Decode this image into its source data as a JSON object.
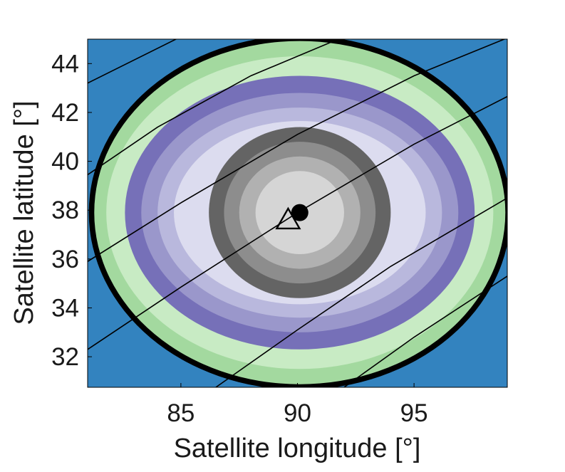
{
  "chart_data": {
    "type": "contour",
    "xlabel": "Satellite longitude [°]",
    "ylabel": "Satellite latitude [°]",
    "xlim": [
      81,
      99
    ],
    "ylim": [
      30.75,
      45
    ],
    "xticks": [
      85,
      90,
      95
    ],
    "yticks": [
      32,
      34,
      36,
      38,
      40,
      42,
      44
    ],
    "grid": false,
    "background_color": "#3383bf",
    "center": {
      "lon": 90.1,
      "lat": 37.9
    },
    "contour_levels": [
      {
        "rx": 9.0,
        "ry": 7.2,
        "color": "#a3d99f"
      },
      {
        "rx": 8.3,
        "ry": 6.4,
        "color": "#c8ebc4"
      },
      {
        "rx": 7.5,
        "ry": 5.6,
        "color": "#7670b8"
      },
      {
        "rx": 6.8,
        "ry": 4.9,
        "color": "#9a97cb"
      },
      {
        "rx": 6.1,
        "ry": 4.3,
        "color": "#b9b8dd"
      },
      {
        "rx": 5.4,
        "ry": 3.75,
        "color": "#dcdcef"
      },
      {
        "rx": 3.9,
        "ry": 3.5,
        "color": "#646464"
      },
      {
        "rx": 3.25,
        "ry": 2.9,
        "color": "#8d8d8d"
      },
      {
        "rx": 2.6,
        "ry": 2.3,
        "color": "#b1b1b1"
      },
      {
        "rx": 1.9,
        "ry": 1.7,
        "color": "#d5d5d5"
      }
    ],
    "outer_ring": {
      "rx": 9.05,
      "ry": 7.25,
      "color": "#000000"
    },
    "tracks": [
      {
        "points": [
          [
            81,
            43.2
          ],
          [
            85,
            45.1
          ]
        ]
      },
      {
        "points": [
          [
            81,
            39.45
          ],
          [
            84,
            41.4
          ],
          [
            88,
            43.5
          ],
          [
            92,
            45.1
          ]
        ]
      },
      {
        "points": [
          [
            81,
            35.9
          ],
          [
            85,
            38.3
          ],
          [
            90,
            41.1
          ],
          [
            95,
            43.5
          ],
          [
            99,
            45.05
          ]
        ]
      },
      {
        "points": [
          [
            81,
            32.3
          ],
          [
            85,
            34.85
          ],
          [
            90,
            37.9
          ],
          [
            95,
            40.7
          ],
          [
            99,
            42.65
          ]
        ]
      },
      {
        "points": [
          [
            86.5,
            30.75
          ],
          [
            90,
            33.1
          ],
          [
            94,
            35.7
          ],
          [
            99,
            38.5
          ]
        ]
      },
      {
        "points": [
          [
            92,
            30.75
          ],
          [
            95,
            32.8
          ],
          [
            99,
            35.3
          ]
        ]
      }
    ],
    "markers": [
      {
        "type": "filled-circle",
        "lon": 90.1,
        "lat": 37.9,
        "color": "#000000"
      },
      {
        "type": "open-triangle",
        "lon": 89.6,
        "lat": 37.6,
        "color": "#000000"
      }
    ]
  }
}
